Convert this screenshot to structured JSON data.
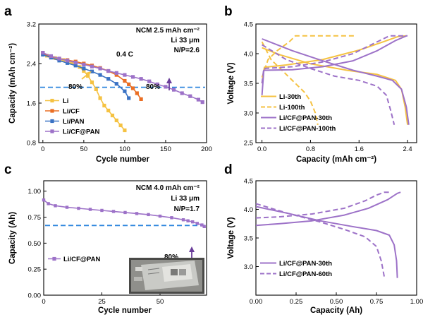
{
  "chart_data": [
    {
      "panel": "a",
      "type": "scatter",
      "xlabel": "Cycle number",
      "ylabel": "Capacity (mAh cm⁻²)",
      "xlim": [
        -5,
        200
      ],
      "ylim": [
        0.8,
        3.2
      ],
      "xticks": [
        "0",
        "50",
        "100",
        "150",
        "200"
      ],
      "yticks": [
        "0.8",
        "1.6",
        "2.4",
        "3.2"
      ],
      "annotations": {
        "title1": "NCM 2.5 mAh cm⁻²",
        "title2": "Li 33 μm",
        "title3": "N/P=2.6",
        "rate": "0.4 C",
        "pct_left": "80%",
        "pct_right": "80%"
      },
      "reference_line": 1.92,
      "series": [
        {
          "name": "Li",
          "color": "#f5c242",
          "x": [
            0,
            5,
            10,
            15,
            20,
            25,
            30,
            35,
            40,
            45,
            50,
            55,
            60,
            65,
            70,
            75,
            80,
            85,
            90,
            95,
            100
          ],
          "y": [
            2.62,
            2.56,
            2.53,
            2.51,
            2.49,
            2.47,
            2.45,
            2.42,
            2.38,
            2.33,
            2.25,
            2.15,
            2.02,
            1.88,
            1.7,
            1.55,
            1.45,
            1.35,
            1.25,
            1.15,
            1.05
          ]
        },
        {
          "name": "Li/CF",
          "color": "#ea6e23",
          "x": [
            0,
            10,
            20,
            30,
            40,
            50,
            60,
            70,
            80,
            90,
            100,
            105,
            110,
            115,
            120
          ],
          "y": [
            2.6,
            2.54,
            2.5,
            2.47,
            2.44,
            2.4,
            2.36,
            2.31,
            2.25,
            2.17,
            2.05,
            1.98,
            1.9,
            1.8,
            1.68
          ]
        },
        {
          "name": "Li/PAN",
          "color": "#3a72c4",
          "x": [
            0,
            10,
            20,
            30,
            40,
            50,
            60,
            70,
            80,
            90,
            100,
            105
          ],
          "y": [
            2.58,
            2.52,
            2.46,
            2.41,
            2.36,
            2.3,
            2.24,
            2.17,
            2.09,
            1.99,
            1.84,
            1.7
          ]
        },
        {
          "name": "Li/CF@PAN",
          "color": "#9d72c8",
          "x": [
            0,
            10,
            20,
            30,
            40,
            50,
            60,
            70,
            80,
            90,
            100,
            110,
            120,
            130,
            140,
            150,
            160,
            170,
            180,
            190,
            195
          ],
          "y": [
            2.62,
            2.55,
            2.5,
            2.46,
            2.42,
            2.38,
            2.34,
            2.3,
            2.25,
            2.21,
            2.17,
            2.13,
            2.09,
            2.04,
            1.98,
            1.93,
            1.87,
            1.8,
            1.74,
            1.67,
            1.62
          ]
        }
      ]
    },
    {
      "panel": "b",
      "type": "line",
      "xlabel": "Capacity (mAh cm⁻²)",
      "ylabel": "Voltage (V)",
      "xlim": [
        -0.1,
        2.55
      ],
      "ylim": [
        2.5,
        4.5
      ],
      "xticks": [
        "0.0",
        "0.8",
        "1.6",
        "2.4"
      ],
      "yticks": [
        "2.5",
        "3.0",
        "3.5",
        "4.0",
        "4.5"
      ],
      "series": [
        {
          "name": "Li-30th",
          "color": "#f5c242",
          "style": "solid"
        },
        {
          "name": "Li-100th",
          "color": "#f5c242",
          "style": "dashed"
        },
        {
          "name": "Li/CF@PAN-30th",
          "color": "#9d72c8",
          "style": "solid"
        },
        {
          "name": "Li/CF@PAN-100th",
          "color": "#9d72c8",
          "style": "dashed"
        }
      ],
      "curves": [
        {
          "color": "#f5c242",
          "style": "solid",
          "x": [
            0,
            0.04,
            0.4,
            1.0,
            1.6,
            2.0,
            2.25,
            2.38
          ],
          "y": [
            3.5,
            3.77,
            3.81,
            3.9,
            4.06,
            4.2,
            4.29,
            4.3
          ]
        },
        {
          "color": "#f5c242",
          "style": "solid",
          "x": [
            0,
            0.3,
            0.8,
            1.4,
            1.9,
            2.2,
            2.3,
            2.36,
            2.4
          ],
          "y": [
            4.1,
            3.98,
            3.83,
            3.72,
            3.65,
            3.55,
            3.4,
            3.1,
            2.8
          ]
        },
        {
          "color": "#f5c242",
          "style": "dashed",
          "x": [
            0,
            0.1,
            0.25,
            0.45,
            0.55,
            0.7,
            1.0,
            1.55
          ],
          "y": [
            3.6,
            3.9,
            4.05,
            4.2,
            4.3,
            4.3,
            4.3,
            4.3
          ]
        },
        {
          "color": "#f5c242",
          "style": "dashed",
          "x": [
            0,
            0.15,
            0.35,
            0.55,
            0.7,
            0.8,
            0.88,
            0.92
          ],
          "y": [
            4.2,
            3.9,
            3.7,
            3.5,
            3.35,
            3.2,
            3.0,
            2.8
          ]
        },
        {
          "color": "#9d72c8",
          "style": "solid",
          "x": [
            0,
            0.03,
            0.5,
            1.0,
            1.5,
            1.9,
            2.2,
            2.38
          ],
          "y": [
            3.3,
            3.72,
            3.73,
            3.78,
            3.88,
            4.05,
            4.22,
            4.3
          ]
        },
        {
          "color": "#9d72c8",
          "style": "solid",
          "x": [
            0,
            0.5,
            1.0,
            1.5,
            1.9,
            2.15,
            2.3,
            2.38,
            2.42
          ],
          "y": [
            4.25,
            4.05,
            3.88,
            3.72,
            3.62,
            3.55,
            3.4,
            3.1,
            2.8
          ]
        },
        {
          "color": "#9d72c8",
          "style": "dashed",
          "x": [
            0,
            0.03,
            0.5,
            1.0,
            1.5,
            1.8,
            2.0,
            2.1,
            2.2,
            2.4
          ],
          "y": [
            3.5,
            3.75,
            3.78,
            3.86,
            4.0,
            4.15,
            4.25,
            4.3,
            4.3,
            4.3
          ]
        },
        {
          "color": "#9d72c8",
          "style": "dashed",
          "x": [
            0,
            0.4,
            0.8,
            1.2,
            1.6,
            1.9,
            2.05,
            2.12,
            2.18
          ],
          "y": [
            4.15,
            3.9,
            3.75,
            3.62,
            3.55,
            3.45,
            3.3,
            3.05,
            2.8
          ]
        }
      ]
    },
    {
      "panel": "c",
      "type": "scatter",
      "xlabel": "Cycle number",
      "ylabel": "Capacity (Ah)",
      "xlim": [
        0,
        70
      ],
      "ylim": [
        0.0,
        1.1
      ],
      "xticks": [
        "0",
        "25",
        "50"
      ],
      "yticks": [
        "0.00",
        "0.25",
        "0.50",
        "0.75",
        "1.00"
      ],
      "annotations": {
        "title1": "NCM 4.0 mAh cm⁻²",
        "title2": "Li 33 μm",
        "title3": "N/P=1.7",
        "pct": "80%"
      },
      "reference_line": 0.67,
      "series": [
        {
          "name": "Li/CF@PAN",
          "color": "#9d72c8",
          "x": [
            0,
            2,
            5,
            10,
            15,
            20,
            25,
            30,
            35,
            40,
            45,
            50,
            55,
            60,
            62,
            64,
            66,
            68,
            69
          ],
          "y": [
            0.915,
            0.88,
            0.86,
            0.845,
            0.835,
            0.825,
            0.815,
            0.805,
            0.795,
            0.785,
            0.775,
            0.76,
            0.745,
            0.725,
            0.715,
            0.705,
            0.69,
            0.675,
            0.66
          ]
        }
      ]
    },
    {
      "panel": "d",
      "type": "line",
      "xlabel": "Capacity (Ah)",
      "ylabel": "Voltage (V)",
      "xlim": [
        0.0,
        1.0
      ],
      "ylim": [
        2.5,
        4.5
      ],
      "xticks": [
        "0.00",
        "0.25",
        "0.50",
        "0.75",
        "1.00"
      ],
      "yticks": [
        "3.0",
        "3.5",
        "4.0",
        "4.5"
      ],
      "series": [
        {
          "name": "Li/CF@PAN-30th",
          "color": "#9d72c8",
          "style": "solid"
        },
        {
          "name": "Li/CF@PAN-60th",
          "color": "#9d72c8",
          "style": "dashed"
        }
      ],
      "curves": [
        {
          "color": "#9d72c8",
          "style": "solid",
          "x": [
            0,
            0.15,
            0.35,
            0.55,
            0.7,
            0.82,
            0.88,
            0.9
          ],
          "y": [
            3.72,
            3.75,
            3.8,
            3.9,
            4.02,
            4.17,
            4.28,
            4.3
          ]
        },
        {
          "color": "#9d72c8",
          "style": "solid",
          "x": [
            0,
            0.2,
            0.4,
            0.6,
            0.75,
            0.83,
            0.86,
            0.875,
            0.88
          ],
          "y": [
            4.05,
            3.93,
            3.8,
            3.7,
            3.63,
            3.55,
            3.38,
            3.1,
            2.8
          ]
        },
        {
          "color": "#9d72c8",
          "style": "dashed",
          "x": [
            0,
            0.15,
            0.35,
            0.55,
            0.68,
            0.75,
            0.8,
            0.83
          ],
          "y": [
            3.85,
            3.87,
            3.92,
            4.02,
            4.15,
            4.25,
            4.3,
            4.3
          ]
        },
        {
          "color": "#9d72c8",
          "style": "dashed",
          "x": [
            0,
            0.2,
            0.4,
            0.55,
            0.68,
            0.75,
            0.78,
            0.8
          ],
          "y": [
            4.1,
            3.93,
            3.78,
            3.65,
            3.52,
            3.35,
            3.1,
            2.8
          ]
        }
      ]
    }
  ],
  "panel_labels": [
    "a",
    "b",
    "c",
    "d"
  ],
  "photo": {
    "icon": "pouch-cell-photo"
  }
}
